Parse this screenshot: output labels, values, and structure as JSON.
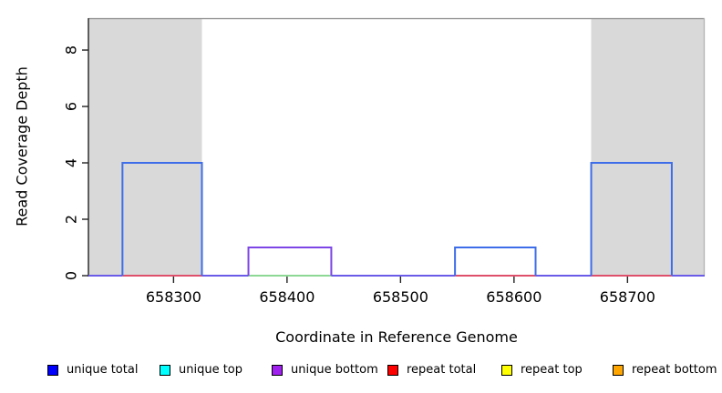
{
  "figure": {
    "xlabel": "Coordinate in Reference Genome",
    "ylabel": "Read Coverage Depth"
  },
  "chart_data": {
    "type": "line",
    "title": "",
    "xlabel": "Coordinate in Reference Genome",
    "ylabel": "Read Coverage Depth",
    "xlim": [
      658225,
      658768
    ],
    "ylim": [
      0,
      9.13
    ],
    "x_ticks": [
      658300,
      658400,
      658500,
      658600,
      658700
    ],
    "y_ticks": [
      0,
      2,
      4,
      6,
      8
    ],
    "grid": false,
    "legend_position": "bottom",
    "shaded_regions": [
      {
        "name": "shaded-region-left",
        "x0": 658225,
        "x1": 658325,
        "color": "#d9d9d9"
      },
      {
        "name": "shaded-region-right",
        "x0": 658668,
        "x1": 658768,
        "color": "#d9d9d9"
      }
    ],
    "coverage_boxes": [
      {
        "series": "unique total",
        "x0": 658255,
        "x1": 658325,
        "depth": 4,
        "color": "#3d6de8"
      },
      {
        "series": "unique bottom",
        "x0": 658366,
        "x1": 658439,
        "depth": 1,
        "color": "#7d45e6"
      },
      {
        "series": "unique total",
        "x0": 658548,
        "x1": 658619,
        "depth": 1,
        "color": "#3d6de8"
      },
      {
        "series": "unique total",
        "x0": 658668,
        "x1": 658739,
        "depth": 4,
        "color": "#3d6de8"
      }
    ],
    "baseline_segments": [
      {
        "x0": 658225,
        "x1": 658255,
        "color": "#6a5be8"
      },
      {
        "x0": 658255,
        "x1": 658325,
        "color": "#dd4f6a"
      },
      {
        "x0": 658325,
        "x1": 658366,
        "color": "#6a5be8"
      },
      {
        "x0": 658366,
        "x1": 658439,
        "color": "#8cd894"
      },
      {
        "x0": 658439,
        "x1": 658548,
        "color": "#6a5be8"
      },
      {
        "x0": 658548,
        "x1": 658619,
        "color": "#dd4f6a"
      },
      {
        "x0": 658619,
        "x1": 658668,
        "color": "#6a5be8"
      },
      {
        "x0": 658668,
        "x1": 658739,
        "color": "#dd4f6a"
      },
      {
        "x0": 658739,
        "x1": 658768,
        "color": "#6a5be8"
      }
    ],
    "legend": [
      {
        "label": "unique total",
        "color": "#0000ff"
      },
      {
        "label": "unique top",
        "color": "#00ffff"
      },
      {
        "label": "unique bottom",
        "color": "#a020f0"
      },
      {
        "label": "repeat total",
        "color": "#ff0000"
      },
      {
        "label": "repeat top",
        "color": "#ffff00"
      },
      {
        "label": "repeat bottom",
        "color": "#ffa500"
      }
    ],
    "colors": {
      "shaded_region": "#d9d9d9",
      "frame": "#8a8a8a",
      "axis": "#222222"
    }
  }
}
